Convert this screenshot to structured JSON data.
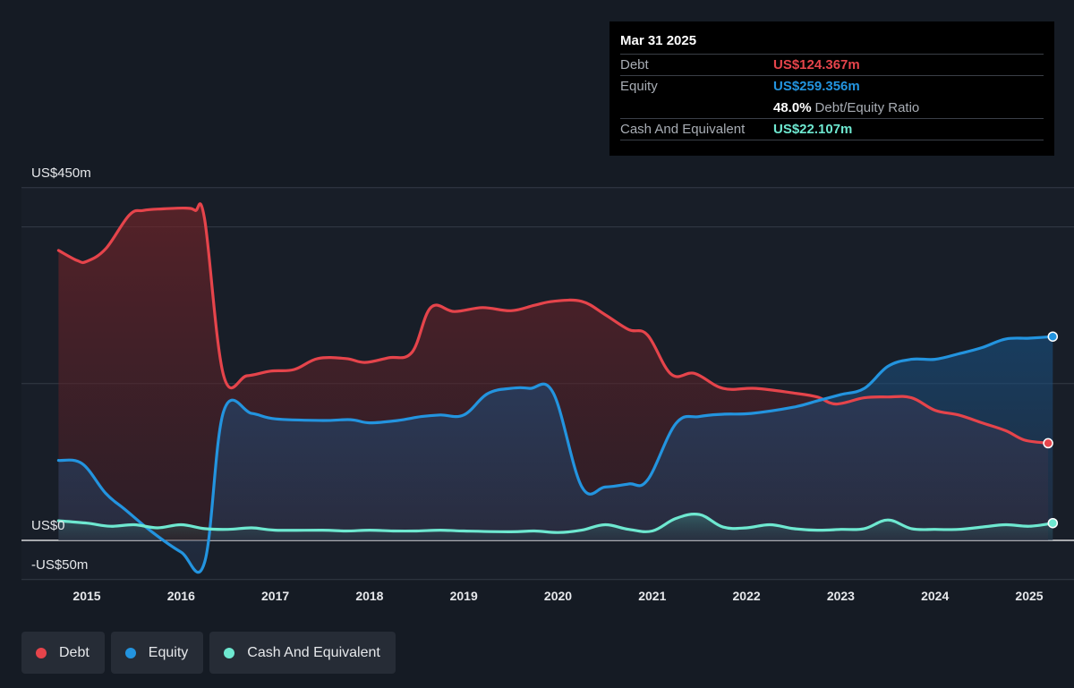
{
  "colors": {
    "debt": "#e5444b",
    "equity": "#2394df",
    "cash": "#6ee8d0",
    "background": "#151b24"
  },
  "tooltip": {
    "date": "Mar 31 2025",
    "debt_label": "Debt",
    "debt_value": "US$124.367m",
    "equity_label": "Equity",
    "equity_value": "US$259.356m",
    "ratio_value": "48.0%",
    "ratio_label": "Debt/Equity Ratio",
    "cash_label": "Cash And Equivalent",
    "cash_value": "US$22.107m"
  },
  "legend": [
    {
      "label": "Debt",
      "color": "#e5444b"
    },
    {
      "label": "Equity",
      "color": "#2394df"
    },
    {
      "label": "Cash And Equivalent",
      "color": "#6ee8d0"
    }
  ],
  "chart_data": {
    "type": "area",
    "y_tick_labels": [
      "US$450m",
      "US$0",
      "-US$50m"
    ],
    "x_tick_labels": [
      "2015",
      "2016",
      "2017",
      "2018",
      "2019",
      "2020",
      "2021",
      "2022",
      "2023",
      "2024",
      "2025"
    ],
    "ylim": [
      -50,
      450
    ],
    "xlim": [
      2014.7,
      2025.25
    ],
    "grid": true,
    "legend_position": "bottom-left",
    "series": [
      {
        "name": "Debt",
        "x": [
          2014.7,
          2014.9,
          2015.0,
          2015.2,
          2015.45,
          2015.6,
          2015.8,
          2016.05,
          2016.15,
          2016.25,
          2016.45,
          2016.7,
          2016.95,
          2017.2,
          2017.45,
          2017.75,
          2017.95,
          2018.2,
          2018.45,
          2018.65,
          2018.9,
          2019.2,
          2019.5,
          2019.75,
          2019.95,
          2020.25,
          2020.5,
          2020.75,
          2020.95,
          2021.2,
          2021.45,
          2021.75,
          2022.1,
          2022.5,
          2022.75,
          2022.95,
          2023.25,
          2023.5,
          2023.75,
          2024.0,
          2024.25,
          2024.5,
          2024.75,
          2024.95,
          2025.2
        ],
        "values": [
          370,
          357,
          356,
          372,
          415,
          421,
          423,
          424,
          421,
          410,
          211,
          210,
          216,
          218,
          232,
          232,
          227,
          233,
          240,
          297,
          292,
          297,
          293,
          300,
          305,
          305,
          288,
          269,
          262,
          212,
          213,
          194,
          194,
          188,
          183,
          174,
          182,
          183,
          182,
          166,
          160,
          150,
          140,
          128,
          124
        ]
      },
      {
        "name": "Equity",
        "x": [
          2014.7,
          2014.95,
          2015.2,
          2015.4,
          2015.7,
          2016.0,
          2016.25,
          2016.45,
          2016.75,
          2017.0,
          2017.5,
          2017.8,
          2018.0,
          2018.3,
          2018.55,
          2018.75,
          2019.0,
          2019.25,
          2019.5,
          2019.7,
          2019.95,
          2020.25,
          2020.5,
          2020.75,
          2020.95,
          2021.25,
          2021.5,
          2021.75,
          2022.05,
          2022.5,
          2022.75,
          2023.0,
          2023.25,
          2023.5,
          2023.75,
          2024.0,
          2024.25,
          2024.5,
          2024.75,
          2025.0,
          2025.25
        ],
        "values": [
          102,
          98,
          60,
          40,
          10,
          -15,
          -28,
          164,
          162,
          155,
          153,
          154,
          150,
          153,
          158,
          160,
          160,
          187,
          194,
          194,
          188,
          69,
          68,
          72,
          77,
          149,
          158,
          161,
          162,
          170,
          178,
          186,
          194,
          222,
          231,
          231,
          238,
          246,
          257,
          258,
          260
        ]
      },
      {
        "name": "Cash And Equivalent",
        "x": [
          2014.7,
          2015.0,
          2015.25,
          2015.5,
          2015.75,
          2016.0,
          2016.25,
          2016.5,
          2016.75,
          2017.0,
          2017.5,
          2017.75,
          2018.0,
          2018.25,
          2018.5,
          2018.75,
          2019.0,
          2019.5,
          2019.75,
          2020.0,
          2020.25,
          2020.5,
          2020.75,
          2021.0,
          2021.25,
          2021.5,
          2021.75,
          2022.0,
          2022.25,
          2022.5,
          2022.75,
          2023.0,
          2023.25,
          2023.5,
          2023.75,
          2024.0,
          2024.25,
          2024.5,
          2024.75,
          2025.0,
          2025.25
        ],
        "values": [
          25,
          22,
          18,
          20,
          16,
          20,
          15,
          14,
          16,
          13,
          13,
          12,
          13,
          12,
          12,
          13,
          12,
          11,
          12,
          10,
          13,
          20,
          14,
          12,
          28,
          33,
          17,
          16,
          20,
          15,
          13,
          14,
          15,
          26,
          15,
          14,
          14,
          17,
          20,
          18,
          22
        ]
      }
    ]
  }
}
